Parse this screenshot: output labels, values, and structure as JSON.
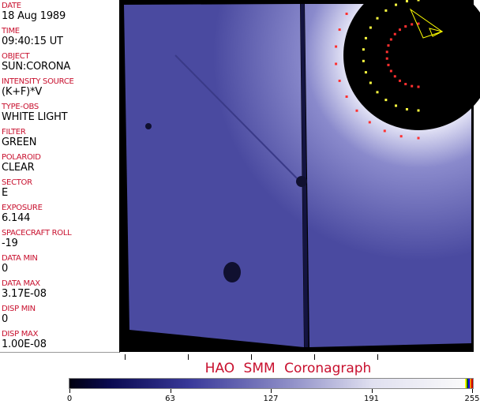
{
  "fields": [
    {
      "label": "DATE",
      "value": "18 Aug 1989"
    },
    {
      "label": "TIME",
      "value": "09:40:15 UT"
    },
    {
      "label": "OBJECT",
      "value": "SUN:CORONA"
    },
    {
      "label": "INTENSITY SOURCE",
      "value": "(K+F)*V"
    },
    {
      "label": "TYPE-OBS",
      "value": "WHITE LIGHT"
    },
    {
      "label": "FILTER",
      "value": "GREEN"
    },
    {
      "label": "POLAROID",
      "value": "CLEAR"
    },
    {
      "label": "SECTOR",
      "value": "E"
    },
    {
      "label": "EXPOSURE",
      "value": "6.144"
    },
    {
      "label": "SPACECRAFT ROLL",
      "value": "-19"
    },
    {
      "label": "DATA MIN",
      "value": "0"
    },
    {
      "label": "DATA MAX",
      "value": "3.17E-08"
    },
    {
      "label": "DISP MIN",
      "value": "0"
    },
    {
      "label": "DISP MAX",
      "value": "1.00E-08"
    }
  ],
  "title": "HAO  SMM Coronagraph",
  "colorbar": {
    "labels": [
      "0",
      "63",
      "127",
      "191",
      "255"
    ],
    "min": 0,
    "max": 255,
    "colormap": "black-blue-white",
    "accent_colors": [
      "#ffff00",
      "#006600",
      "#0000ff",
      "#ff8800",
      "#cc0000"
    ]
  },
  "colors": {
    "label": "#c8102e",
    "image_blue": "#5a5ab0"
  }
}
